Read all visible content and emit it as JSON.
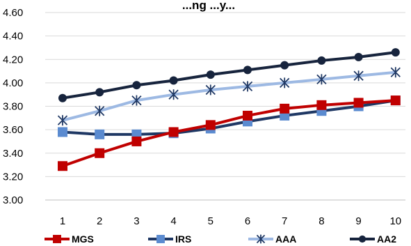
{
  "chart_data": {
    "type": "line",
    "title": "...ng ...y...",
    "xlabel": "",
    "ylabel": "",
    "x": [
      1,
      2,
      3,
      4,
      5,
      6,
      7,
      8,
      9,
      10
    ],
    "x_tick_labels": [
      "1",
      "2",
      "3",
      "4",
      "5",
      "6",
      "7",
      "8",
      "9",
      "10"
    ],
    "ylim": [
      3.0,
      4.6
    ],
    "y_ticks": [
      3.0,
      3.2,
      3.4,
      3.6,
      3.8,
      4.0,
      4.2,
      4.4,
      4.6
    ],
    "y_tick_labels": [
      "3.00",
      "3.20",
      "3.40",
      "3.60",
      "3.80",
      "4.00",
      "4.20",
      "4.40",
      "4.60"
    ],
    "grid": true,
    "legend_position": "bottom",
    "series": [
      {
        "name": "MGS",
        "color": "#C00000",
        "marker": "square",
        "values": [
          3.29,
          3.4,
          3.5,
          3.58,
          3.64,
          3.72,
          3.78,
          3.81,
          3.83,
          3.85
        ]
      },
      {
        "name": "IRS",
        "color": "#1F3864",
        "marker_color": "#5B8BD0",
        "marker": "square",
        "values": [
          3.58,
          3.56,
          3.56,
          3.57,
          3.61,
          3.67,
          3.72,
          3.76,
          3.8,
          3.85
        ]
      },
      {
        "name": "AAA",
        "color": "#9DB9E3",
        "marker_color": "#1F3864",
        "marker": "asterisk",
        "values": [
          3.68,
          3.76,
          3.85,
          3.9,
          3.94,
          3.97,
          4.0,
          4.03,
          4.06,
          4.09
        ]
      },
      {
        "name": "AA2",
        "color": "#17243D",
        "marker": "circle",
        "values": [
          3.87,
          3.92,
          3.98,
          4.02,
          4.07,
          4.11,
          4.15,
          4.19,
          4.22,
          4.26
        ]
      }
    ]
  }
}
